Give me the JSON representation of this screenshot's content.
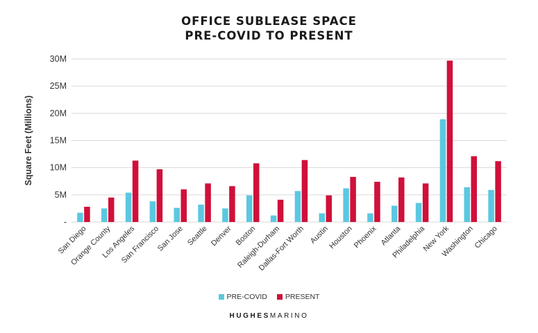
{
  "chart_data": {
    "type": "bar",
    "title_line1": "OFFICE SUBLEASE SPACE",
    "title_line2": "PRE-COVID TO PRESENT",
    "xlabel": "",
    "ylabel": "Square Feet (Millions)",
    "ylim": [
      0,
      30
    ],
    "yticks": [
      {
        "value": 0,
        "label": "-"
      },
      {
        "value": 5,
        "label": "5M"
      },
      {
        "value": 10,
        "label": "10M"
      },
      {
        "value": 15,
        "label": "15M"
      },
      {
        "value": 20,
        "label": "20M"
      },
      {
        "value": 25,
        "label": "25M"
      },
      {
        "value": 30,
        "label": "30M"
      }
    ],
    "grid": true,
    "legend_position": "bottom",
    "categories": [
      "San Diego",
      "Orange County",
      "Los Angeles",
      "San Francisco",
      "San Jose",
      "Seattle",
      "Denver",
      "Boston",
      "Raleigh-Durham",
      "Dallas-Fort Worth",
      "Austin",
      "Houston",
      "Phoenix",
      "Atlanta",
      "Philadelphia",
      "New York",
      "Washington",
      "Chicago"
    ],
    "series": [
      {
        "name": "PRE-COVID",
        "color": "#5bc8e0",
        "values": [
          1.7,
          2.5,
          5.4,
          3.8,
          2.6,
          3.2,
          2.5,
          4.9,
          1.2,
          5.7,
          1.6,
          6.2,
          1.6,
          3.0,
          3.5,
          18.9,
          6.4,
          5.9
        ]
      },
      {
        "name": "PRESENT",
        "color": "#d0103a",
        "values": [
          2.8,
          4.5,
          11.3,
          9.7,
          6.0,
          7.1,
          6.6,
          10.8,
          4.1,
          11.4,
          4.9,
          8.3,
          7.4,
          8.2,
          7.1,
          29.7,
          12.1,
          11.2
        ]
      }
    ]
  },
  "brand": {
    "part1": "HUGHES",
    "part2": "MARINO"
  }
}
